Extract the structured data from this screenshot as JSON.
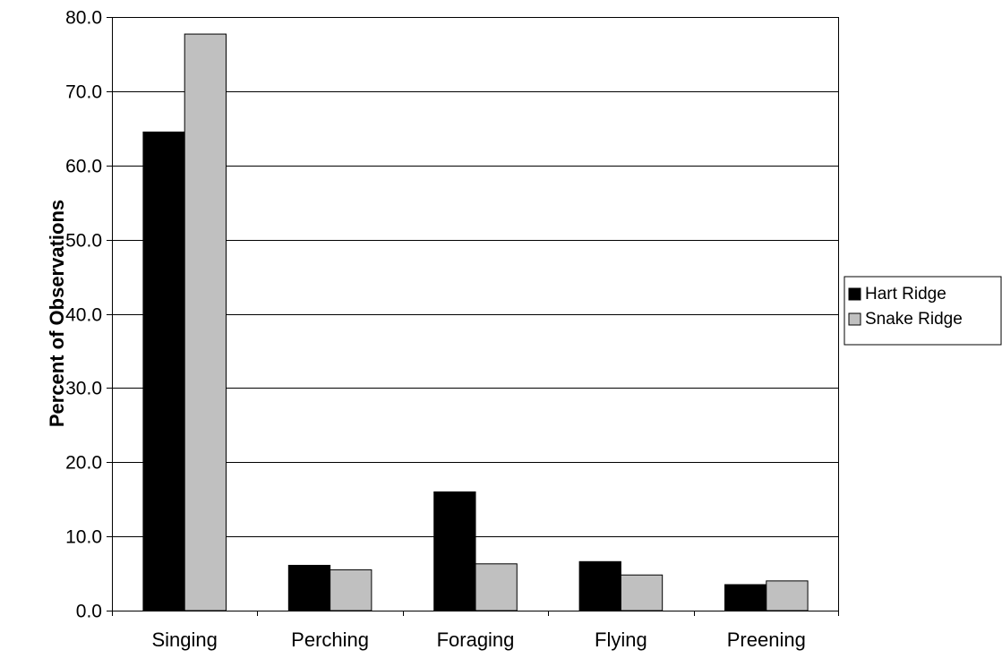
{
  "chart_data": {
    "type": "bar",
    "title": "",
    "xlabel": "",
    "ylabel": "Percent of Observations",
    "categories": [
      "Singing",
      "Perching",
      "Foraging",
      "Flying",
      "Preening"
    ],
    "series": [
      {
        "name": "Hart Ridge",
        "values": [
          64.5,
          6.1,
          16.0,
          6.6,
          3.5
        ],
        "color": "#000000"
      },
      {
        "name": "Snake Ridge",
        "values": [
          77.7,
          5.5,
          6.3,
          4.8,
          4.0
        ],
        "color": "#c0c0c0"
      }
    ],
    "ylim": [
      0,
      80
    ],
    "yticks": [
      "0.0",
      "10.0",
      "20.0",
      "30.0",
      "40.0",
      "50.0",
      "60.0",
      "70.0",
      "80.0"
    ],
    "grid": true,
    "legend": "right"
  }
}
